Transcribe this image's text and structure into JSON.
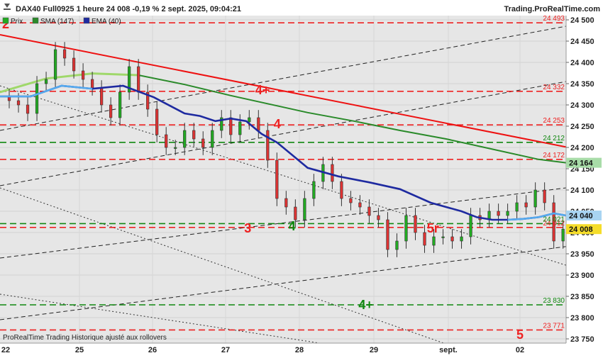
{
  "header": {
    "title": "DAX40 Full0925 1 heure 24 008 -0,19 % 2 sept. 2025, 09:04:21",
    "brand": "Trading.ProRealTime.com"
  },
  "legend": [
    {
      "label": "Prix",
      "icon": "candlestick-icon",
      "color": "#22aa22"
    },
    {
      "label": "SMA (147)",
      "icon": "sma-line-icon",
      "color": "#2a8a2a"
    },
    {
      "label": "EMA (40)",
      "icon": "ema-line-icon",
      "color": "#1e2aa0"
    }
  ],
  "footer": {
    "credit": "ProRealTime Trading  Historique ajusté aux rollovers"
  },
  "chart_data": {
    "type": "candlestick",
    "timeframe": "1 heure",
    "instrument": "DAX40 Full0925",
    "last_price": 24008,
    "change_pct": -0.19,
    "ylim": [
      23740,
      24510
    ],
    "x_ticks": [
      "22",
      "25",
      "26",
      "27",
      "28",
      "29",
      "sept.",
      "02"
    ],
    "y_ticks": [
      23750,
      23800,
      23850,
      23900,
      23950,
      24000,
      24050,
      24100,
      24150,
      24200,
      24250,
      24300,
      24350,
      24400,
      24450,
      24500
    ],
    "y_tick_labels": [
      "23 750",
      "23 800",
      "23 850",
      "23 900",
      "23 950",
      "24 000",
      "24 050",
      "24 100",
      "24 150",
      "24 200",
      "24 250",
      "24 300",
      "24 350",
      "24 400",
      "24 450",
      "24 500"
    ],
    "grid": true,
    "background": "#e6e6e6",
    "colors": {
      "up": "#22aa22",
      "down": "#dd3333",
      "resistance": "#ee2222",
      "support": "#118811",
      "trendline": "#ee1111",
      "sma": "#2a8a2a",
      "ema": "#1e2aa0",
      "ema_recent": "#55aaee"
    },
    "resistance_levels": [
      {
        "value": 24493,
        "label": "24 493"
      },
      {
        "value": 24332,
        "label": "24 332"
      },
      {
        "value": 24253,
        "label": "24 253"
      },
      {
        "value": 24172,
        "label": "24 172"
      },
      {
        "value": 24012,
        "label": "24 012"
      },
      {
        "value": 23771,
        "label": "23 771"
      }
    ],
    "support_levels": [
      {
        "value": 24212,
        "label": "24 212"
      },
      {
        "value": 24021,
        "label": "24 021"
      },
      {
        "value": 23830,
        "label": "23 830"
      }
    ],
    "price_tags": [
      {
        "value": 24164,
        "label": "24 164",
        "color": "#a8dca8"
      },
      {
        "value": 24040,
        "label": "24 040",
        "color": "#a8d4f2"
      },
      {
        "value": 24008,
        "label": "24 008",
        "color": "#f5dd2a"
      }
    ],
    "annotations": [
      {
        "text": "2",
        "x": "22",
        "y": 24490,
        "color": "#ee2222"
      },
      {
        "text": "4+",
        "x": "27.5",
        "y": 24335,
        "color": "#ee2222"
      },
      {
        "text": "4",
        "x": "27.7",
        "y": 24255,
        "color": "#ee2222"
      },
      {
        "text": "3",
        "x": "27.3",
        "y": 24010,
        "color": "#ee2222"
      },
      {
        "text": "4",
        "x": "27.9",
        "y": 24015,
        "color": "#118811"
      },
      {
        "text": "5r",
        "x": "29.8",
        "y": 24010,
        "color": "#ee2222"
      },
      {
        "text": "4+",
        "x": "28.9",
        "y": 23830,
        "color": "#118811"
      },
      {
        "text": "5",
        "x": "02",
        "y": 23760,
        "color": "#ee2222"
      }
    ],
    "trendline": {
      "from": {
        "x": 0,
        "y": 24465
      },
      "to": {
        "x": 184,
        "y": 24201
      }
    },
    "channel_lines": [
      {
        "from": {
          "x": 0,
          "y": 24240
        },
        "to": {
          "x": 184,
          "y": 24485
        }
      },
      {
        "from": {
          "x": 0,
          "y": 24110
        },
        "to": {
          "x": 184,
          "y": 24355
        }
      },
      {
        "from": {
          "x": 0,
          "y": 23940
        },
        "to": {
          "x": 184,
          "y": 24105
        }
      },
      {
        "from": {
          "x": 0,
          "y": 23795
        },
        "to": {
          "x": 184,
          "y": 23967
        }
      }
    ],
    "fan_lines": [
      {
        "from": {
          "x": 0,
          "y": 24345
        },
        "to": {
          "x": 184,
          "y": 23923
        }
      },
      {
        "from": {
          "x": 0,
          "y": 24105
        },
        "to": {
          "x": 160,
          "y": 23700
        }
      },
      {
        "from": {
          "x": 0,
          "y": 23855
        },
        "to": {
          "x": 140,
          "y": 23700
        }
      }
    ],
    "sma_series": [
      {
        "x": 0,
        "y": 24330
      },
      {
        "x": 15,
        "y": 24362
      },
      {
        "x": 30,
        "y": 24374
      },
      {
        "x": 45,
        "y": 24370
      },
      {
        "x": 60,
        "y": 24348
      },
      {
        "x": 75,
        "y": 24322
      },
      {
        "x": 90,
        "y": 24298
      },
      {
        "x": 100,
        "y": 24282
      },
      {
        "x": 115,
        "y": 24262
      },
      {
        "x": 130,
        "y": 24240
      },
      {
        "x": 145,
        "y": 24220
      },
      {
        "x": 160,
        "y": 24196
      },
      {
        "x": 175,
        "y": 24172
      },
      {
        "x": 184,
        "y": 24164
      }
    ],
    "ema_series": [
      {
        "x": 0,
        "y": 24320
      },
      {
        "x": 10,
        "y": 24320
      },
      {
        "x": 20,
        "y": 24345
      },
      {
        "x": 30,
        "y": 24338
      },
      {
        "x": 40,
        "y": 24345
      },
      {
        "x": 50,
        "y": 24318
      },
      {
        "x": 60,
        "y": 24280
      },
      {
        "x": 65,
        "y": 24274
      },
      {
        "x": 70,
        "y": 24262
      },
      {
        "x": 75,
        "y": 24268
      },
      {
        "x": 80,
        "y": 24262
      },
      {
        "x": 85,
        "y": 24232
      },
      {
        "x": 90,
        "y": 24212
      },
      {
        "x": 95,
        "y": 24182
      },
      {
        "x": 100,
        "y": 24152
      },
      {
        "x": 110,
        "y": 24132
      },
      {
        "x": 120,
        "y": 24118
      },
      {
        "x": 130,
        "y": 24102
      },
      {
        "x": 140,
        "y": 24070
      },
      {
        "x": 150,
        "y": 24050
      },
      {
        "x": 155,
        "y": 24036
      },
      {
        "x": 160,
        "y": 24030
      },
      {
        "x": 165,
        "y": 24030
      },
      {
        "x": 170,
        "y": 24032
      },
      {
        "x": 175,
        "y": 24036
      },
      {
        "x": 180,
        "y": 24045
      },
      {
        "x": 184,
        "y": 24040
      }
    ],
    "ohlc_points": [
      {
        "x": 0,
        "y": 24320
      },
      {
        "x": 3,
        "y": 24310
      },
      {
        "x": 6,
        "y": 24300
      },
      {
        "x": 9,
        "y": 24280
      },
      {
        "x": 12,
        "y": 24350
      },
      {
        "x": 15,
        "y": 24360
      },
      {
        "x": 18,
        "y": 24430
      },
      {
        "x": 21,
        "y": 24410
      },
      {
        "x": 24,
        "y": 24380
      },
      {
        "x": 27,
        "y": 24360
      },
      {
        "x": 30,
        "y": 24340
      },
      {
        "x": 33,
        "y": 24300
      },
      {
        "x": 36,
        "y": 24270
      },
      {
        "x": 39,
        "y": 24330
      },
      {
        "x": 42,
        "y": 24390
      },
      {
        "x": 45,
        "y": 24330
      },
      {
        "x": 48,
        "y": 24290
      },
      {
        "x": 51,
        "y": 24230
      },
      {
        "x": 54,
        "y": 24200
      },
      {
        "x": 57,
        "y": 24200
      },
      {
        "x": 60,
        "y": 24240
      },
      {
        "x": 63,
        "y": 24220
      },
      {
        "x": 66,
        "y": 24200
      },
      {
        "x": 69,
        "y": 24240
      },
      {
        "x": 72,
        "y": 24270
      },
      {
        "x": 75,
        "y": 24230
      },
      {
        "x": 78,
        "y": 24260
      },
      {
        "x": 81,
        "y": 24270
      },
      {
        "x": 84,
        "y": 24240
      },
      {
        "x": 87,
        "y": 24170
      },
      {
        "x": 90,
        "y": 24080
      },
      {
        "x": 93,
        "y": 24060
      },
      {
        "x": 96,
        "y": 24030
      },
      {
        "x": 99,
        "y": 24080
      },
      {
        "x": 102,
        "y": 24120
      },
      {
        "x": 105,
        "y": 24160
      },
      {
        "x": 108,
        "y": 24120
      },
      {
        "x": 111,
        "y": 24080
      },
      {
        "x": 114,
        "y": 24070
      },
      {
        "x": 117,
        "y": 24060
      },
      {
        "x": 120,
        "y": 24040
      },
      {
        "x": 123,
        "y": 24030
      },
      {
        "x": 126,
        "y": 23960
      },
      {
        "x": 129,
        "y": 23980
      },
      {
        "x": 132,
        "y": 24040
      },
      {
        "x": 135,
        "y": 24000
      },
      {
        "x": 138,
        "y": 23970
      },
      {
        "x": 141,
        "y": 23990
      },
      {
        "x": 144,
        "y": 23990
      },
      {
        "x": 147,
        "y": 23980
      },
      {
        "x": 150,
        "y": 23990
      },
      {
        "x": 153,
        "y": 24040
      },
      {
        "x": 156,
        "y": 24030
      },
      {
        "x": 159,
        "y": 24050
      },
      {
        "x": 162,
        "y": 24040
      },
      {
        "x": 165,
        "y": 24050
      },
      {
        "x": 168,
        "y": 24070
      },
      {
        "x": 171,
        "y": 24060
      },
      {
        "x": 174,
        "y": 24100
      },
      {
        "x": 177,
        "y": 24070
      },
      {
        "x": 180,
        "y": 23980
      },
      {
        "x": 183,
        "y": 24008
      }
    ]
  }
}
